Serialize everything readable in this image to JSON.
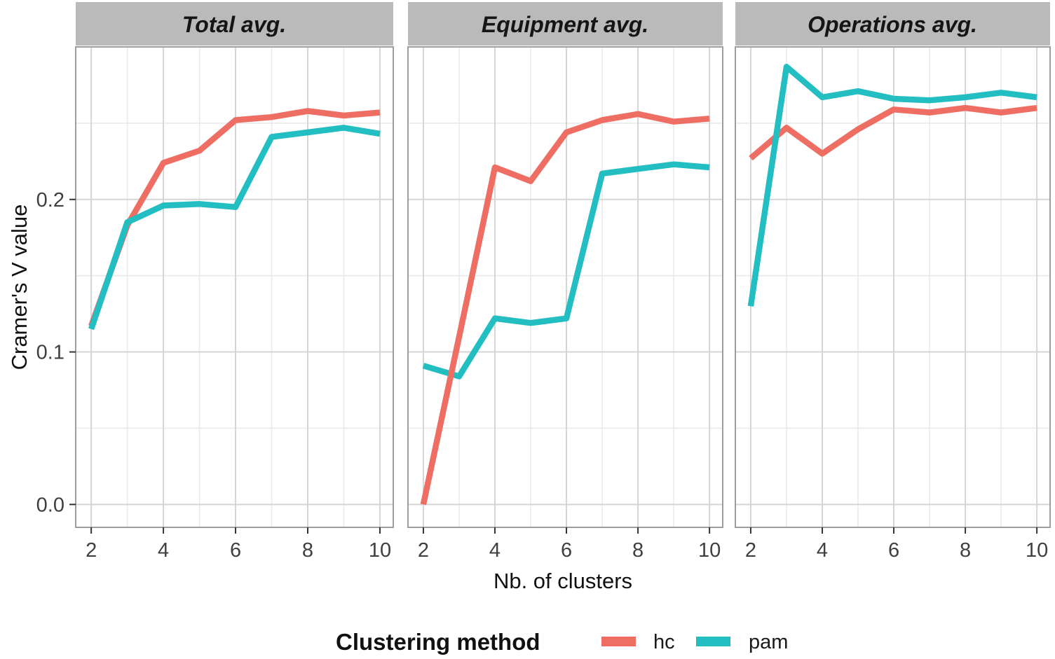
{
  "chart_data": {
    "type": "line",
    "title": "",
    "xlabel": "Nb. of clusters",
    "ylabel": "Cramer's V value",
    "x": [
      2,
      3,
      4,
      5,
      6,
      7,
      8,
      9,
      10
    ],
    "xlim": [
      1.57,
      10.37
    ],
    "ylim": [
      -0.015,
      0.3
    ],
    "x_ticks": [
      {
        "label": "2",
        "value": 2
      },
      {
        "label": "4",
        "value": 4
      },
      {
        "label": "6",
        "value": 6
      },
      {
        "label": "8",
        "value": 8
      },
      {
        "label": "10",
        "value": 10
      }
    ],
    "x_minor": [
      3,
      5,
      7,
      9
    ],
    "y_ticks": [
      {
        "label": "0.0",
        "value": 0.0
      },
      {
        "label": "0.1",
        "value": 0.1
      },
      {
        "label": "0.2",
        "value": 0.2
      }
    ],
    "y_minor": [
      0.05,
      0.15,
      0.25
    ],
    "grid": "major+minor",
    "colors": {
      "hc": "#EF6E63",
      "pam": "#23BEC1",
      "strip_fill": "#BABABA",
      "grid_major": "#d5d5d5",
      "grid_minor": "#eaeaea",
      "panel_border": "#9e9e9e",
      "tick_mark": "#333333"
    },
    "legend": {
      "title": "Clustering method",
      "position": "bottom",
      "entries": [
        {
          "label": "hc",
          "color": "#EF6E63"
        },
        {
          "label": "pam",
          "color": "#23BEC1"
        }
      ]
    },
    "facets": [
      {
        "label": "Total avg.",
        "draw_order": [
          "hc",
          "pam"
        ],
        "series": [
          {
            "name": "hc",
            "values": [
              0.117,
              0.183,
              0.224,
              0.232,
              0.252,
              0.254,
              0.258,
              0.255,
              0.257
            ]
          },
          {
            "name": "pam",
            "values": [
              0.115,
              0.185,
              0.196,
              0.197,
              0.195,
              0.241,
              0.244,
              0.247,
              0.243
            ]
          }
        ]
      },
      {
        "label": "Equipment avg.",
        "draw_order": [
          "pam",
          "hc"
        ],
        "series": [
          {
            "name": "hc",
            "values": [
              0.0,
              0.11,
              0.221,
              0.212,
              0.244,
              0.252,
              0.256,
              0.251,
              0.253
            ]
          },
          {
            "name": "pam",
            "values": [
              0.091,
              0.084,
              0.122,
              0.119,
              0.122,
              0.217,
              0.22,
              0.223,
              0.221
            ]
          }
        ]
      },
      {
        "label": "Operations avg.",
        "draw_order": [
          "hc",
          "pam"
        ],
        "series": [
          {
            "name": "hc",
            "values": [
              0.227,
              0.247,
              0.23,
              0.246,
              0.259,
              0.257,
              0.26,
              0.257,
              0.26
            ]
          },
          {
            "name": "pam",
            "values": [
              0.13,
              0.287,
              0.267,
              0.271,
              0.266,
              0.265,
              0.267,
              0.27,
              0.267
            ]
          }
        ]
      }
    ]
  }
}
